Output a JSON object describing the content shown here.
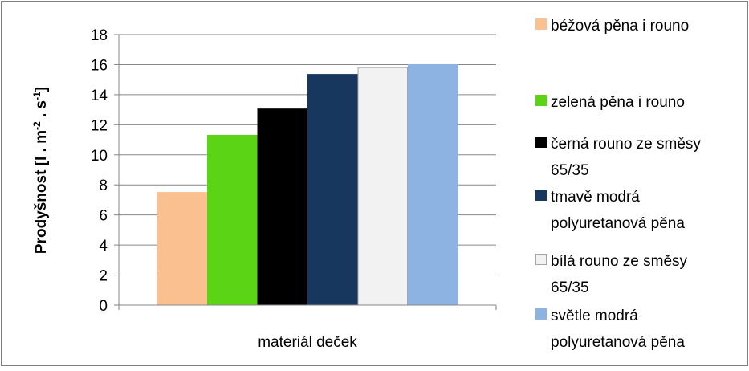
{
  "chart_data": {
    "type": "bar",
    "categories": [
      "materiál deček"
    ],
    "xlabel": "materiál deček",
    "ylabel": "Prodyšnost",
    "ylabel_units": {
      "open": " [l . m",
      "exp1": "-2",
      "mid": " . s",
      "exp2": "-1",
      "close": "]"
    },
    "ylim": [
      0,
      18
    ],
    "yticks": [
      "0",
      "2",
      "4",
      "6",
      "8",
      "10",
      "12",
      "14",
      "16",
      "18"
    ],
    "grid": true,
    "legend_position": "right",
    "series": [
      {
        "name": "béžová pěna i rouno",
        "legend_lines": [
          "béžová pěna i rouno"
        ],
        "values": [
          7.5
        ],
        "color": "#FAC090",
        "stroke": "#FAC090"
      },
      {
        "name": "zelená pěna i rouno",
        "legend_lines": [
          "zelená pěna i rouno"
        ],
        "values": [
          11.3
        ],
        "color": "#5AD414",
        "stroke": "#5AD414"
      },
      {
        "name": "černá rouno ze směsy 65/35",
        "legend_lines": [
          "černá rouno ze směsy",
          "65/35"
        ],
        "values": [
          13.05
        ],
        "color": "#000000",
        "stroke": "#000000"
      },
      {
        "name": "tmavě modrá polyuretanová pěna",
        "legend_lines": [
          "tmavě modrá",
          "polyuretanová pěna"
        ],
        "values": [
          15.35
        ],
        "color": "#17375E",
        "stroke": "#17375E"
      },
      {
        "name": "bílá rouno ze směsy 65/35",
        "legend_lines": [
          "bílá rouno ze směsy",
          "65/35"
        ],
        "values": [
          15.8
        ],
        "color": "#F2F2F2",
        "stroke": "#A6A6A6"
      },
      {
        "name": "světle modrá polyuretanová pěna",
        "legend_lines": [
          "světle modrá",
          "polyuretanová pěna"
        ],
        "values": [
          16.0
        ],
        "color": "#8DB3E2",
        "stroke": "#8DB3E2"
      }
    ]
  }
}
